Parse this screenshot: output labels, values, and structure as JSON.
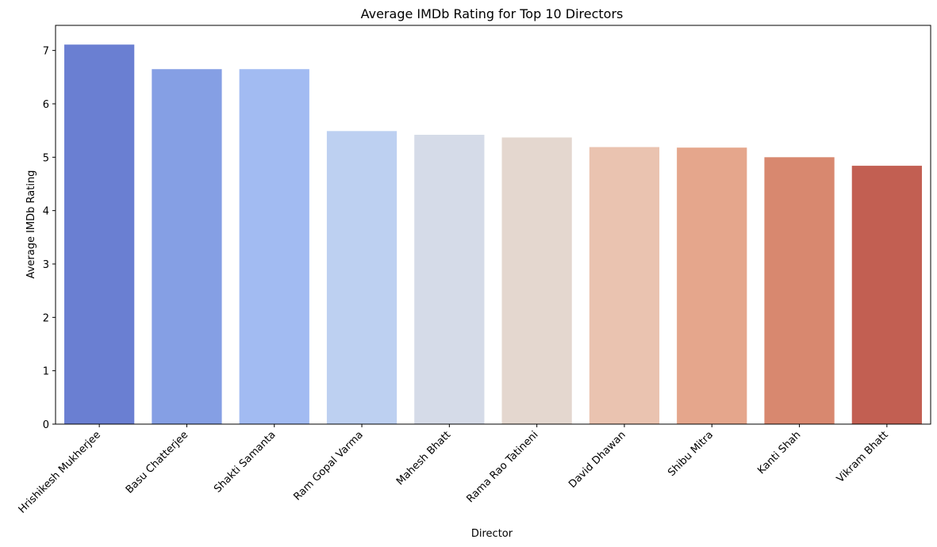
{
  "chart_data": {
    "type": "bar",
    "title": "Average IMDb Rating for Top 10 Directors",
    "xlabel": "Director",
    "ylabel": "Average IMDb Rating",
    "categories": [
      "Hrishikesh Mukherjee",
      "Basu Chatterjee",
      "Shakti Samanta",
      "Ram Gopal Varma",
      "Mahesh Bhatt",
      "Rama Rao Tatineni",
      "David Dhawan",
      "Shibu Mitra",
      "Kanti Shah",
      "Vikram Bhatt"
    ],
    "values": [
      7.11,
      6.65,
      6.65,
      5.49,
      5.42,
      5.37,
      5.19,
      5.18,
      5.0,
      4.84
    ],
    "colors": [
      "#6a7fd2",
      "#859fe4",
      "#a2bbf2",
      "#bdd0f1",
      "#d5dbe8",
      "#e4d7cf",
      "#eac3b0",
      "#e5a68c",
      "#d8886f",
      "#c25f52"
    ],
    "ylim": [
      0,
      7.47
    ],
    "yticks": [
      0,
      1,
      2,
      3,
      4,
      5,
      6,
      7
    ],
    "grid": false
  }
}
